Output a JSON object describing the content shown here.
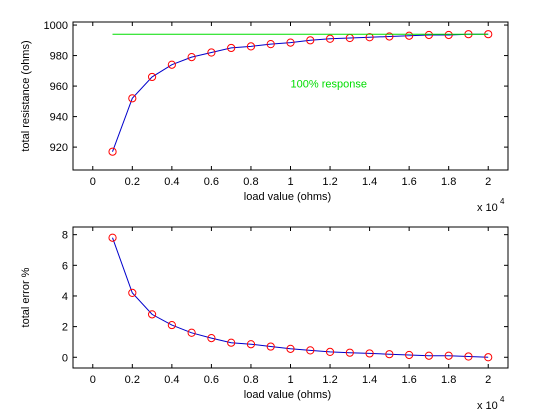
{
  "chart_data": [
    {
      "type": "line",
      "xlabel": "load value (ohms)",
      "ylabel": "total resistance (ohms)",
      "x_exponent_label": "x 10",
      "x_exponent_power": "4",
      "xlim": [
        -1000,
        21000
      ],
      "ylim": [
        905,
        1002
      ],
      "xticks": [
        0,
        2000,
        4000,
        6000,
        8000,
        10000,
        12000,
        14000,
        16000,
        18000,
        20000
      ],
      "xtick_labels": [
        "0",
        "0.2",
        "0.4",
        "0.6",
        "0.8",
        "1",
        "1.2",
        "1.4",
        "1.6",
        "1.8",
        "2"
      ],
      "yticks": [
        920,
        940,
        960,
        980,
        1000
      ],
      "ytick_labels": [
        "920",
        "940",
        "960",
        "980",
        "1000"
      ],
      "grid": false,
      "annotation": {
        "text": "100% response",
        "x": 10000,
        "y": 959,
        "color": "#00dd00"
      },
      "series": [
        {
          "style": "line-with-circle-markers",
          "line_color": "#0000cc",
          "marker_color": "#ff0000",
          "x": [
            1000,
            2000,
            3000,
            4000,
            5000,
            6000,
            7000,
            8000,
            9000,
            10000,
            11000,
            12000,
            13000,
            14000,
            15000,
            16000,
            17000,
            18000,
            19000,
            20000
          ],
          "y": [
            917,
            952,
            966,
            974,
            979,
            982,
            985,
            986,
            987.5,
            988.5,
            990,
            991,
            991.5,
            992,
            992.5,
            993,
            993.5,
            993.5,
            994,
            994
          ]
        },
        {
          "style": "reference-line",
          "line_color": "#00dd00",
          "x": [
            1000,
            20000
          ],
          "y": [
            994,
            994
          ]
        }
      ]
    },
    {
      "type": "line",
      "xlabel": "load value (ohms)",
      "ylabel": "total error %",
      "x_exponent_label": "x 10",
      "x_exponent_power": "4",
      "xlim": [
        -1000,
        21000
      ],
      "ylim": [
        -0.7,
        8.5
      ],
      "xticks": [
        0,
        2000,
        4000,
        6000,
        8000,
        10000,
        12000,
        14000,
        16000,
        18000,
        20000
      ],
      "xtick_labels": [
        "0",
        "0.2",
        "0.4",
        "0.6",
        "0.8",
        "1",
        "1.2",
        "1.4",
        "1.6",
        "1.8",
        "2"
      ],
      "yticks": [
        0,
        2,
        4,
        6,
        8
      ],
      "ytick_labels": [
        "0",
        "2",
        "4",
        "6",
        "8"
      ],
      "grid": false,
      "series": [
        {
          "style": "line-with-circle-markers",
          "line_color": "#0000cc",
          "marker_color": "#ff0000",
          "x": [
            1000,
            2000,
            3000,
            4000,
            5000,
            6000,
            7000,
            8000,
            9000,
            10000,
            11000,
            12000,
            13000,
            14000,
            15000,
            16000,
            17000,
            18000,
            19000,
            20000
          ],
          "y": [
            7.8,
            4.2,
            2.8,
            2.1,
            1.6,
            1.25,
            0.95,
            0.85,
            0.7,
            0.55,
            0.45,
            0.35,
            0.3,
            0.25,
            0.2,
            0.15,
            0.1,
            0.1,
            0.05,
            0.0
          ]
        }
      ]
    }
  ]
}
